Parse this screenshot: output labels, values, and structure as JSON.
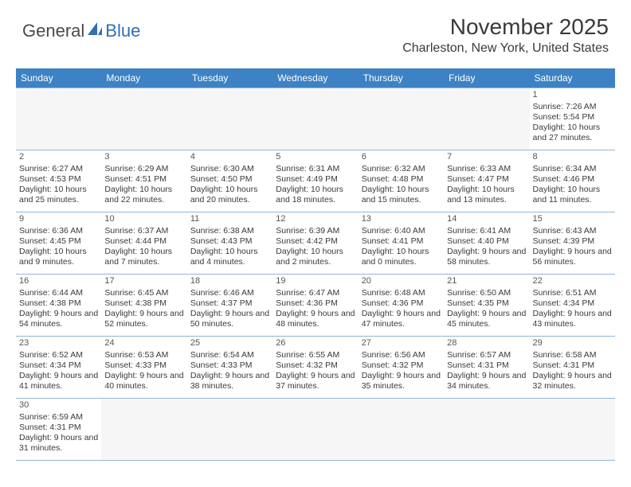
{
  "logo": {
    "text1": "General",
    "text2": "Blue",
    "color1": "#4a4a4a",
    "color2": "#2f6fb0",
    "sail_color": "#2f6fb0"
  },
  "title": "November 2025",
  "location": "Charleston, New York, United States",
  "header_bg": "#3d82c4",
  "header_fg": "#ffffff",
  "border_color": "#95b5d6",
  "daynames": [
    "Sunday",
    "Monday",
    "Tuesday",
    "Wednesday",
    "Thursday",
    "Friday",
    "Saturday"
  ],
  "weeks": [
    [
      null,
      null,
      null,
      null,
      null,
      null,
      {
        "n": "1",
        "sr": "Sunrise: 7:26 AM",
        "ss": "Sunset: 5:54 PM",
        "dl": "Daylight: 10 hours and 27 minutes."
      }
    ],
    [
      {
        "n": "2",
        "sr": "Sunrise: 6:27 AM",
        "ss": "Sunset: 4:53 PM",
        "dl": "Daylight: 10 hours and 25 minutes."
      },
      {
        "n": "3",
        "sr": "Sunrise: 6:29 AM",
        "ss": "Sunset: 4:51 PM",
        "dl": "Daylight: 10 hours and 22 minutes."
      },
      {
        "n": "4",
        "sr": "Sunrise: 6:30 AM",
        "ss": "Sunset: 4:50 PM",
        "dl": "Daylight: 10 hours and 20 minutes."
      },
      {
        "n": "5",
        "sr": "Sunrise: 6:31 AM",
        "ss": "Sunset: 4:49 PM",
        "dl": "Daylight: 10 hours and 18 minutes."
      },
      {
        "n": "6",
        "sr": "Sunrise: 6:32 AM",
        "ss": "Sunset: 4:48 PM",
        "dl": "Daylight: 10 hours and 15 minutes."
      },
      {
        "n": "7",
        "sr": "Sunrise: 6:33 AM",
        "ss": "Sunset: 4:47 PM",
        "dl": "Daylight: 10 hours and 13 minutes."
      },
      {
        "n": "8",
        "sr": "Sunrise: 6:34 AM",
        "ss": "Sunset: 4:46 PM",
        "dl": "Daylight: 10 hours and 11 minutes."
      }
    ],
    [
      {
        "n": "9",
        "sr": "Sunrise: 6:36 AM",
        "ss": "Sunset: 4:45 PM",
        "dl": "Daylight: 10 hours and 9 minutes."
      },
      {
        "n": "10",
        "sr": "Sunrise: 6:37 AM",
        "ss": "Sunset: 4:44 PM",
        "dl": "Daylight: 10 hours and 7 minutes."
      },
      {
        "n": "11",
        "sr": "Sunrise: 6:38 AM",
        "ss": "Sunset: 4:43 PM",
        "dl": "Daylight: 10 hours and 4 minutes."
      },
      {
        "n": "12",
        "sr": "Sunrise: 6:39 AM",
        "ss": "Sunset: 4:42 PM",
        "dl": "Daylight: 10 hours and 2 minutes."
      },
      {
        "n": "13",
        "sr": "Sunrise: 6:40 AM",
        "ss": "Sunset: 4:41 PM",
        "dl": "Daylight: 10 hours and 0 minutes."
      },
      {
        "n": "14",
        "sr": "Sunrise: 6:41 AM",
        "ss": "Sunset: 4:40 PM",
        "dl": "Daylight: 9 hours and 58 minutes."
      },
      {
        "n": "15",
        "sr": "Sunrise: 6:43 AM",
        "ss": "Sunset: 4:39 PM",
        "dl": "Daylight: 9 hours and 56 minutes."
      }
    ],
    [
      {
        "n": "16",
        "sr": "Sunrise: 6:44 AM",
        "ss": "Sunset: 4:38 PM",
        "dl": "Daylight: 9 hours and 54 minutes."
      },
      {
        "n": "17",
        "sr": "Sunrise: 6:45 AM",
        "ss": "Sunset: 4:38 PM",
        "dl": "Daylight: 9 hours and 52 minutes."
      },
      {
        "n": "18",
        "sr": "Sunrise: 6:46 AM",
        "ss": "Sunset: 4:37 PM",
        "dl": "Daylight: 9 hours and 50 minutes."
      },
      {
        "n": "19",
        "sr": "Sunrise: 6:47 AM",
        "ss": "Sunset: 4:36 PM",
        "dl": "Daylight: 9 hours and 48 minutes."
      },
      {
        "n": "20",
        "sr": "Sunrise: 6:48 AM",
        "ss": "Sunset: 4:36 PM",
        "dl": "Daylight: 9 hours and 47 minutes."
      },
      {
        "n": "21",
        "sr": "Sunrise: 6:50 AM",
        "ss": "Sunset: 4:35 PM",
        "dl": "Daylight: 9 hours and 45 minutes."
      },
      {
        "n": "22",
        "sr": "Sunrise: 6:51 AM",
        "ss": "Sunset: 4:34 PM",
        "dl": "Daylight: 9 hours and 43 minutes."
      }
    ],
    [
      {
        "n": "23",
        "sr": "Sunrise: 6:52 AM",
        "ss": "Sunset: 4:34 PM",
        "dl": "Daylight: 9 hours and 41 minutes."
      },
      {
        "n": "24",
        "sr": "Sunrise: 6:53 AM",
        "ss": "Sunset: 4:33 PM",
        "dl": "Daylight: 9 hours and 40 minutes."
      },
      {
        "n": "25",
        "sr": "Sunrise: 6:54 AM",
        "ss": "Sunset: 4:33 PM",
        "dl": "Daylight: 9 hours and 38 minutes."
      },
      {
        "n": "26",
        "sr": "Sunrise: 6:55 AM",
        "ss": "Sunset: 4:32 PM",
        "dl": "Daylight: 9 hours and 37 minutes."
      },
      {
        "n": "27",
        "sr": "Sunrise: 6:56 AM",
        "ss": "Sunset: 4:32 PM",
        "dl": "Daylight: 9 hours and 35 minutes."
      },
      {
        "n": "28",
        "sr": "Sunrise: 6:57 AM",
        "ss": "Sunset: 4:31 PM",
        "dl": "Daylight: 9 hours and 34 minutes."
      },
      {
        "n": "29",
        "sr": "Sunrise: 6:58 AM",
        "ss": "Sunset: 4:31 PM",
        "dl": "Daylight: 9 hours and 32 minutes."
      }
    ],
    [
      {
        "n": "30",
        "sr": "Sunrise: 6:59 AM",
        "ss": "Sunset: 4:31 PM",
        "dl": "Daylight: 9 hours and 31 minutes."
      },
      null,
      null,
      null,
      null,
      null,
      null
    ]
  ]
}
